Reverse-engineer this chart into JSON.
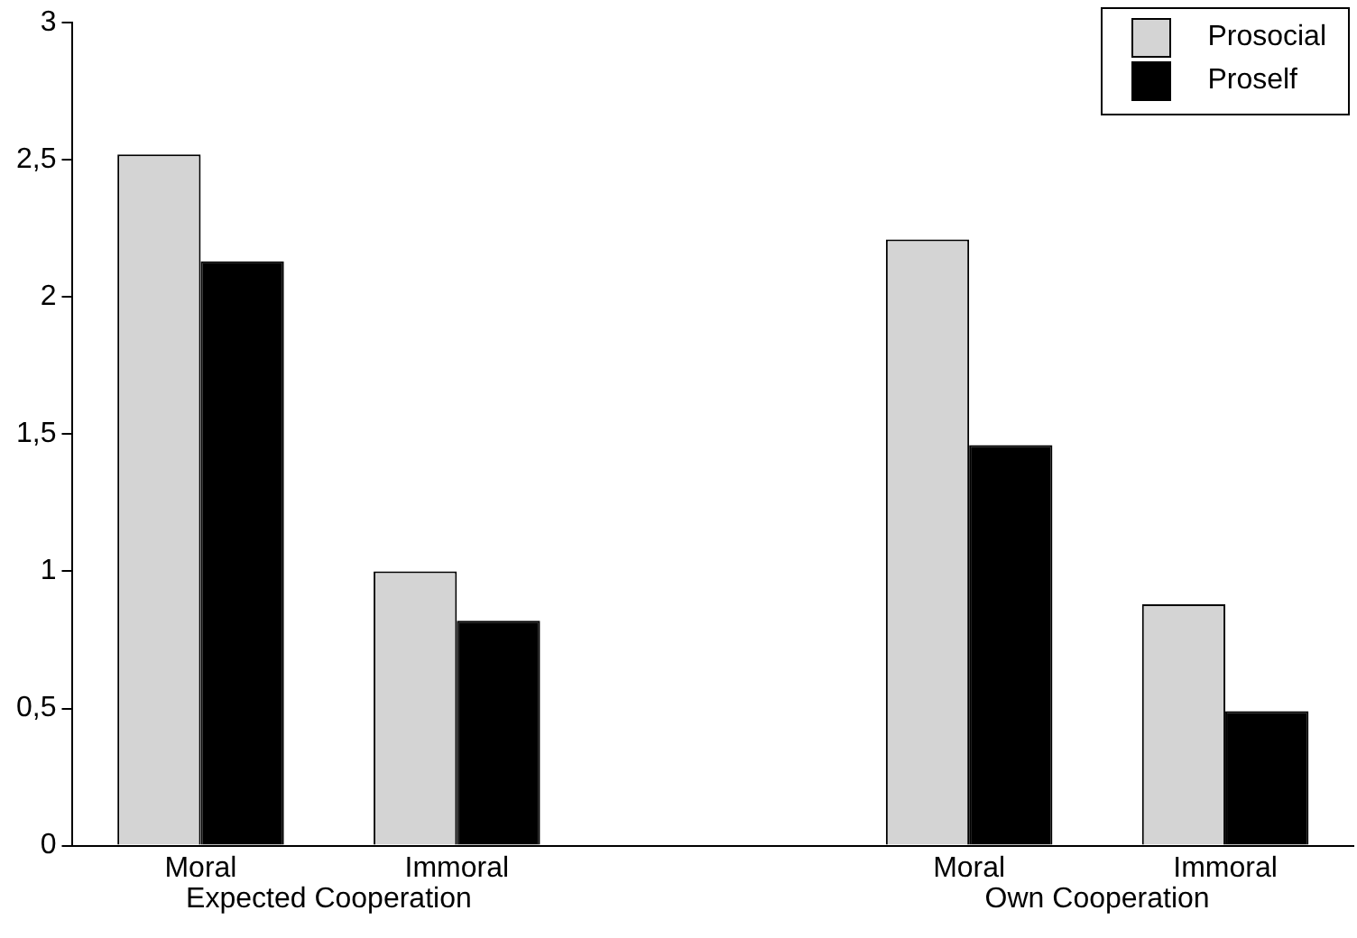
{
  "chart_data": {
    "type": "bar",
    "categories": [
      "Moral",
      "Immoral",
      null,
      "Moral",
      "Immoral"
    ],
    "series": [
      {
        "name": "Prosocial",
        "color": "#d4d4d4",
        "values": [
          2.52,
          1.0,
          null,
          2.21,
          0.88
        ]
      },
      {
        "name": "Proself",
        "color": "#000000",
        "values": [
          2.13,
          0.82,
          null,
          1.46,
          0.49
        ]
      }
    ],
    "ylim": [
      0,
      3
    ],
    "yticks": [
      0,
      {
        "value": 0.5,
        "label": "0,5"
      },
      1,
      {
        "value": 1.5,
        "label": "1,5"
      },
      2,
      {
        "value": 2.5,
        "label": "2,5"
      },
      3
    ],
    "grid": false,
    "legend": "top right",
    "annotations": [
      "Expected Cooperation",
      "Own Cooperation"
    ]
  }
}
